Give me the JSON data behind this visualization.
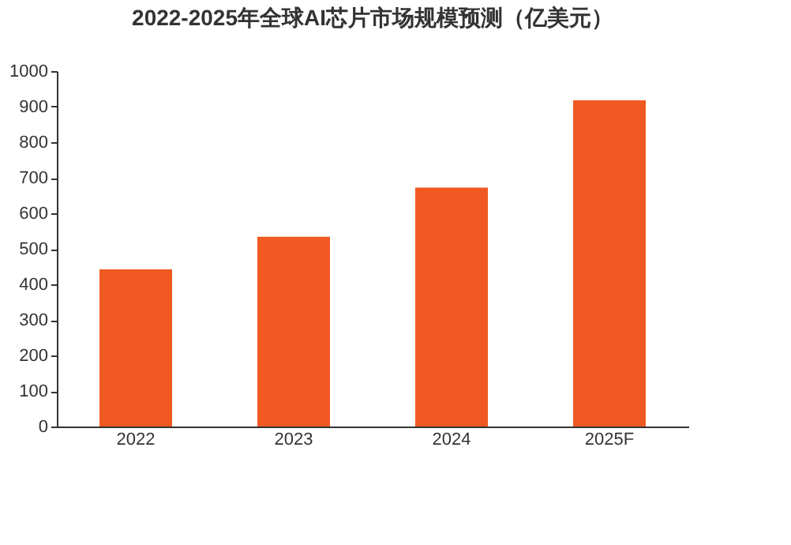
{
  "chart_data": {
    "type": "bar",
    "title": "2022-2025年全球AI芯片市场规模预测（亿美元）",
    "categories": [
      "2022",
      "2023",
      "2024",
      "2025F"
    ],
    "values": [
      442,
      534,
      672,
      918
    ],
    "color": "#f05a22",
    "ylim": [
      0,
      1000
    ],
    "yticks": [
      0,
      100,
      200,
      300,
      400,
      500,
      600,
      700,
      800,
      900,
      1000
    ],
    "grid": false
  }
}
